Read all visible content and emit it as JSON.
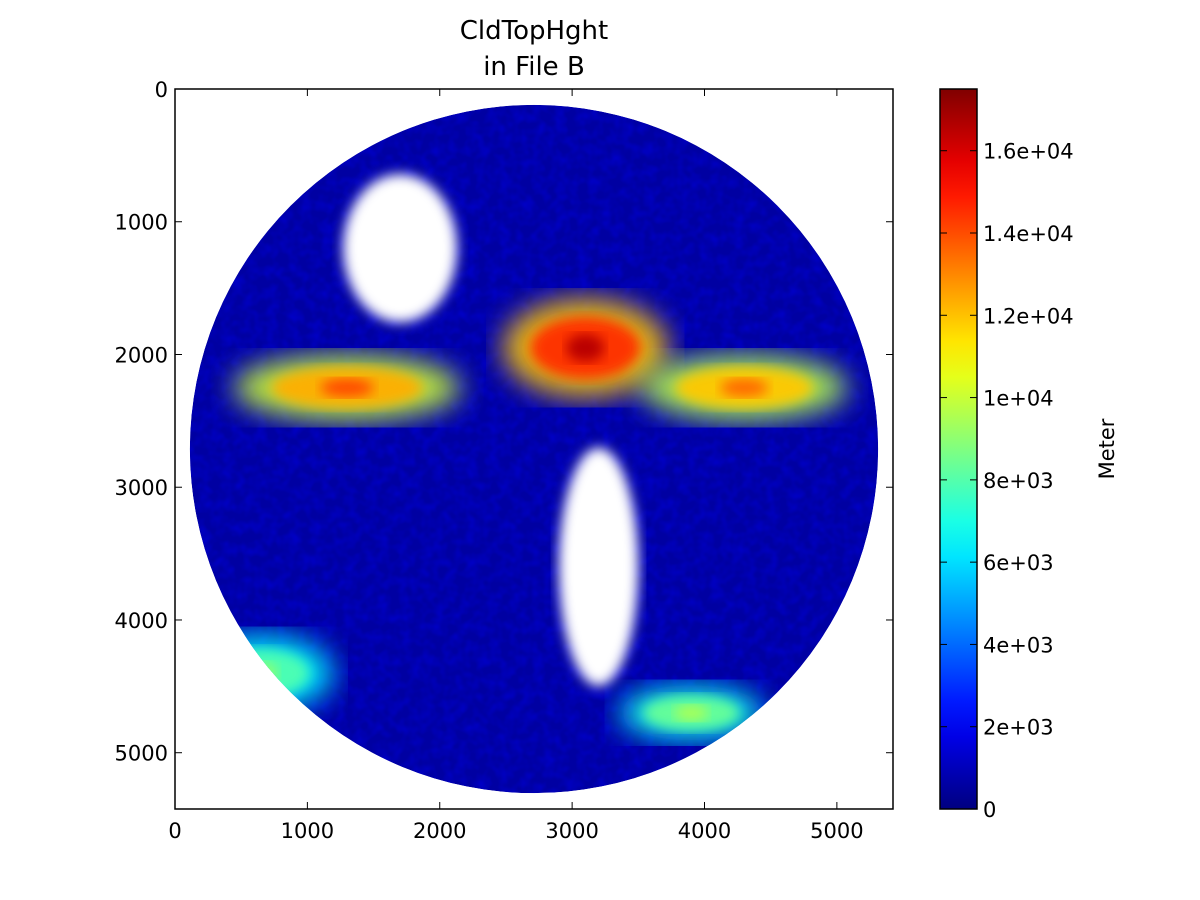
{
  "chart_data": {
    "type": "heatmap",
    "title": "CldTopHght",
    "subtitle": "in File B",
    "x_ticks": [
      0,
      1000,
      2000,
      3000,
      4000,
      5000
    ],
    "y_ticks": [
      0,
      1000,
      2000,
      3000,
      4000,
      5000
    ],
    "xlim": [
      0,
      5424
    ],
    "ylim": [
      5424,
      0
    ],
    "y_inverted": true,
    "grid": false,
    "image": {
      "content": "full-disk satellite view centered on the Americas; masked pixels (no cloud/land) shown white",
      "disk_center": [
        2712,
        2712
      ],
      "disk_radius_approx": 2600,
      "high_cloud_regions": [
        {
          "desc": "deep convection over Central America",
          "center": [
            3100,
            1950
          ],
          "value_approx": 16500
        },
        {
          "desc": "ITCZ Pacific band",
          "center": [
            1300,
            2250
          ],
          "value_approx": 14000
        },
        {
          "desc": "ITCZ Atlantic band",
          "center": [
            4300,
            2250
          ],
          "value_approx": 13500
        },
        {
          "desc": "southern Pacific frontal band",
          "center": [
            650,
            4400
          ],
          "value_approx": 9000
        },
        {
          "desc": "southern Atlantic frontal band",
          "center": [
            3900,
            4700
          ],
          "value_approx": 9500
        }
      ],
      "clear_regions": [
        {
          "desc": "North America (masked)",
          "center": [
            1700,
            1200
          ]
        },
        {
          "desc": "South America (masked)",
          "center": [
            3200,
            3600
          ]
        }
      ]
    },
    "colorbar": {
      "label": "Meter",
      "colormap": "jet",
      "vmin": 0,
      "vmax": 17500,
      "ticks": [
        0,
        2000,
        4000,
        6000,
        8000,
        10000,
        12000,
        14000,
        16000
      ],
      "tick_labels": [
        "0",
        "2e+03",
        "4e+03",
        "6e+03",
        "8e+03",
        "1e+04",
        "1.2e+04",
        "1.4e+04",
        "1.6e+04"
      ]
    }
  }
}
